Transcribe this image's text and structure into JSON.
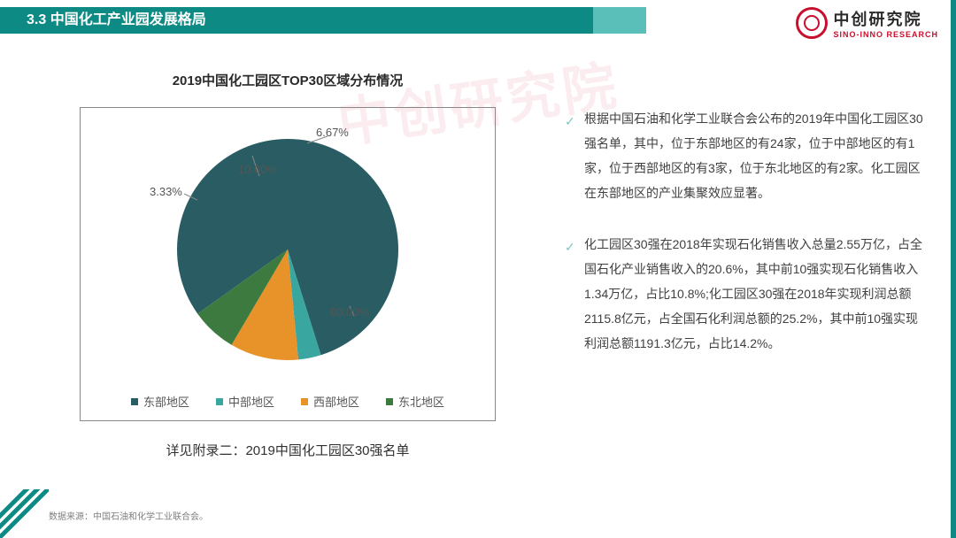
{
  "header": {
    "section_number": "3.3",
    "title": "中国化工产业园发展格局"
  },
  "logo": {
    "cn": "中创研究院",
    "en": "SINO-INNO RESEARCH"
  },
  "watermark": "中创研究院",
  "chart": {
    "type": "pie",
    "title": "2019中国化工园区TOP30区域分布情况",
    "slices": [
      {
        "label": "东部地区",
        "value": 80.0,
        "pct": "80.00%",
        "color": "#2a5d63"
      },
      {
        "label": "中部地区",
        "value": 3.33,
        "pct": "3.33%",
        "color": "#3aa6a0"
      },
      {
        "label": "西部地区",
        "value": 10.0,
        "pct": "10.00%",
        "color": "#e8922a"
      },
      {
        "label": "东北地区",
        "value": 6.67,
        "pct": "6.67%",
        "color": "#3d7a3f"
      }
    ],
    "border_color": "#888888",
    "background_color": "#ffffff",
    "label_fontsize": 13,
    "label_color": "#555555",
    "legend_fontsize": 13
  },
  "footnote": "详见附录二：2019中国化工园区30强名单",
  "paragraphs": [
    "根据中国石油和化学工业联合会公布的2019年中国化工园区30强名单，其中，位于东部地区的有24家，位于中部地区的有1家，位于西部地区的有3家，位于东北地区的有2家。化工园区在东部地区的产业集聚效应显著。",
    "化工园区30强在2018年实现石化销售收入总量2.55万亿，占全国石化产业销售收入的20.6%，其中前10强实现石化销售收入1.34万亿，占比10.8%;化工园区30强在2018年实现利润总额2115.8亿元，占全国石化利润总额的25.2%，其中前10强实现利润总额1191.3亿元，占比14.2%。"
  ],
  "source": "数据来源：中国石油和化学工业联合会。",
  "colors": {
    "header_bg": "#0e8a85",
    "header_accent": "#5bbfb9",
    "brand_red": "#c8102e",
    "text": "#404040"
  }
}
